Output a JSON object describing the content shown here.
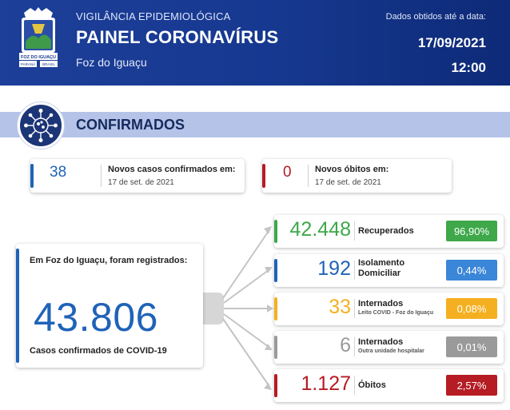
{
  "header": {
    "subtitle": "VIGILÂNCIA EPIDEMIOLÓGICA",
    "title": "PAINEL CORONAVÍRUS",
    "city": "Foz do Iguaçu",
    "data_label": "Dados obtidos até a data:",
    "date": "17/09/2021",
    "time": "12:00",
    "crest": {
      "banner_text": "FOZ DO IGUAÇU",
      "left_text": "PARANÁ",
      "right_text": "BRASIL"
    }
  },
  "section": {
    "title": "CONFIRMADOS",
    "icon": "virus-icon"
  },
  "new_cases": {
    "value": "38",
    "label": "Novos casos confirmados em:",
    "date": "17 de set. de 2021",
    "color": "#1f63b8"
  },
  "new_deaths": {
    "value": "0",
    "label": "Novos óbitos em:",
    "date": "17 de set. de 2021",
    "color": "#b51c24"
  },
  "total": {
    "intro": "Em Foz do Iguaçu, foram registrados:",
    "value": "43.806",
    "caption": "Casos confirmados de COVID-19",
    "color": "#1f63b8"
  },
  "stats": [
    {
      "value": "42.448",
      "label": "Recuperados",
      "sublabel": "",
      "percent": "96,90%",
      "color": "#3ea84a"
    },
    {
      "value": "192",
      "label": "Isolamento Domiciliar",
      "sublabel": "",
      "percent": "0,44%",
      "color": "#1f63b8"
    },
    {
      "value": "33",
      "label": "Internados",
      "sublabel": "Leito COVID - Foz do Iguaçu",
      "percent": "0,08%",
      "color": "#f5b021"
    },
    {
      "value": "6",
      "label": "Internados",
      "sublabel": "Outra unidade hospitalar",
      "percent": "0,01%",
      "color": "#9a9a9a"
    },
    {
      "value": "1.127",
      "label": "Óbitos",
      "sublabel": "",
      "percent": "2,57%",
      "color": "#b51c24"
    }
  ]
}
